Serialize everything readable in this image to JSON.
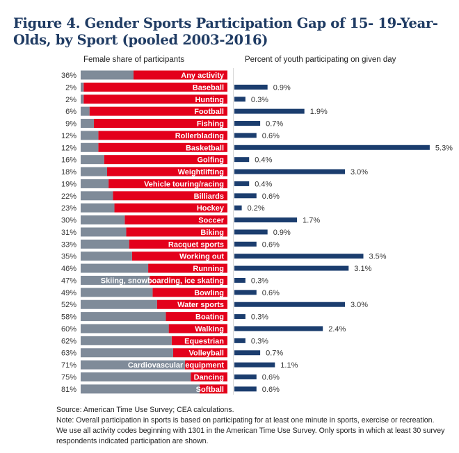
{
  "title": "Figure 4. Gender Sports Participation Gap of 15- 19-Year-Olds, by Sport (pooled 2003-2016)",
  "left_header": "Female share of participants",
  "right_header": "Percent of youth participating on given day",
  "colors": {
    "female": "#7f8b99",
    "male": "#e3001b",
    "participation": "#1b3d6e",
    "title": "#1f3b63"
  },
  "chart_data": [
    {
      "type": "bar",
      "orientation": "horizontal",
      "stacked": true,
      "title": "Female share of participants",
      "categories": [
        "Any activity",
        "Baseball",
        "Hunting",
        "Football",
        "Fishing",
        "Rollerblading",
        "Basketball",
        "Golfing",
        "Weightlifting",
        "Vehicle touring/racing",
        "Billiards",
        "Hockey",
        "Soccer",
        "Biking",
        "Racquet sports",
        "Working out",
        "Running",
        "Skiing, snowboarding, ice skating",
        "Bowling",
        "Water sports",
        "Boating",
        "Walking",
        "Equestrian",
        "Volleyball",
        "Cardiovascular equipment",
        "Dancing",
        "Softball"
      ],
      "series": [
        {
          "name": "Female",
          "values": [
            36,
            2,
            2,
            6,
            9,
            12,
            12,
            16,
            18,
            19,
            22,
            23,
            30,
            31,
            33,
            35,
            46,
            47,
            49,
            52,
            58,
            60,
            62,
            63,
            71,
            75,
            81
          ]
        },
        {
          "name": "Male",
          "values": [
            64,
            98,
            98,
            94,
            91,
            88,
            88,
            84,
            82,
            81,
            78,
            77,
            70,
            69,
            67,
            65,
            54,
            53,
            51,
            48,
            42,
            40,
            38,
            37,
            29,
            25,
            19
          ]
        }
      ],
      "value_labels": [
        "36%",
        "2%",
        "2%",
        "6%",
        "9%",
        "12%",
        "12%",
        "16%",
        "18%",
        "19%",
        "22%",
        "23%",
        "30%",
        "31%",
        "33%",
        "35%",
        "46%",
        "47%",
        "49%",
        "52%",
        "58%",
        "60%",
        "62%",
        "63%",
        "71%",
        "75%",
        "81%"
      ],
      "xlim": [
        0,
        100
      ],
      "unit": "%"
    },
    {
      "type": "bar",
      "orientation": "horizontal",
      "title": "Percent of youth participating on given day",
      "categories": [
        "Any activity",
        "Baseball",
        "Hunting",
        "Football",
        "Fishing",
        "Rollerblading",
        "Basketball",
        "Golfing",
        "Weightlifting",
        "Vehicle touring/racing",
        "Billiards",
        "Hockey",
        "Soccer",
        "Biking",
        "Racquet sports",
        "Working out",
        "Running",
        "Skiing, snowboarding, ice skating",
        "Bowling",
        "Water sports",
        "Boating",
        "Walking",
        "Equestrian",
        "Volleyball",
        "Cardiovascular equipment",
        "Dancing",
        "Softball"
      ],
      "values": [
        null,
        0.9,
        0.3,
        1.9,
        0.7,
        0.6,
        5.3,
        0.4,
        3.0,
        0.4,
        0.6,
        0.2,
        1.7,
        0.9,
        0.6,
        3.5,
        3.1,
        0.3,
        0.6,
        3.0,
        0.3,
        2.4,
        0.3,
        0.7,
        1.1,
        0.6,
        0.6
      ],
      "value_labels": [
        "",
        "0.9%",
        "0.3%",
        "1.9%",
        "0.7%",
        "0.6%",
        "5.3%",
        "0.4%",
        "3.0%",
        "0.4%",
        "0.6%",
        "0.2%",
        "1.7%",
        "0.9%",
        "0.6%",
        "3.5%",
        "3.1%",
        "0.3%",
        "0.6%",
        "3.0%",
        "0.3%",
        "2.4%",
        "0.3%",
        "0.7%",
        "1.1%",
        "0.6%",
        "0.6%"
      ],
      "xlim": [
        0,
        5.5
      ],
      "unit": "%"
    }
  ],
  "footer": {
    "source": "Source: American Time Use Survey; CEA calculations.",
    "note": "Note: Overall participation in sports is based on participating for at least one minute in sports, exercise or recreation. We use all activity codes beginning with 1301 in the American Time Use Survey. Only sports in which at least 30 survey respondents indicated participation are shown."
  }
}
